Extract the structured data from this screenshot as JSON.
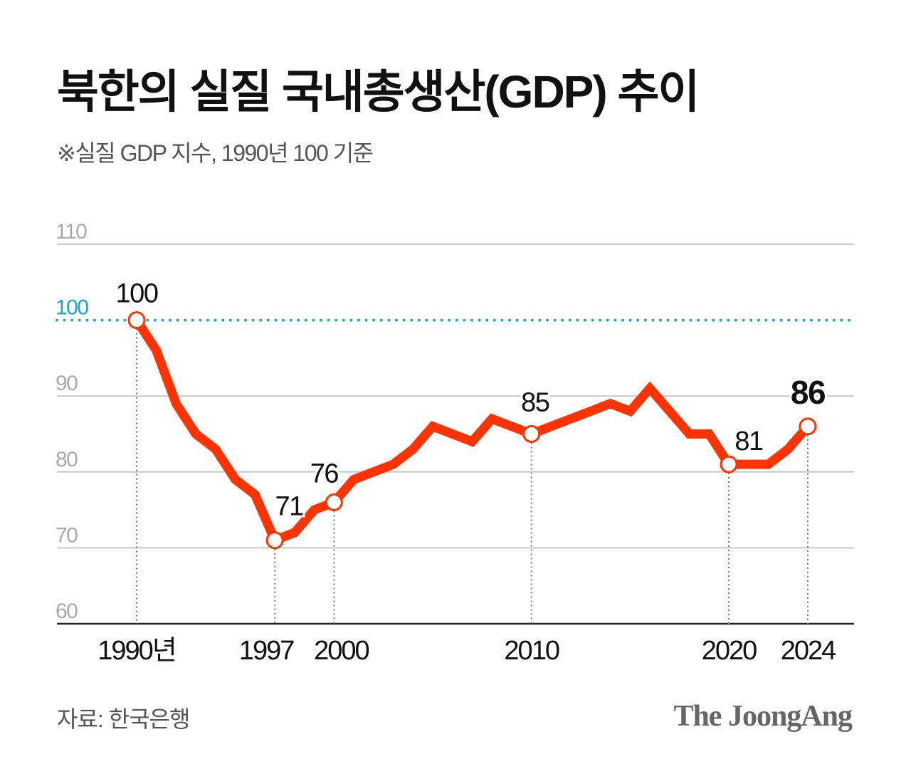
{
  "chart_data": {
    "type": "line",
    "title": "북한의 실질 국내총생산(GDP) 추이",
    "subtitle": "※실질 GDP 지수, 1990년 100 기준",
    "x": [
      1990,
      1991,
      1992,
      1993,
      1994,
      1995,
      1996,
      1997,
      1998,
      1999,
      2000,
      2001,
      2002,
      2003,
      2004,
      2005,
      2006,
      2007,
      2008,
      2009,
      2010,
      2011,
      2012,
      2013,
      2014,
      2015,
      2016,
      2017,
      2018,
      2019,
      2020,
      2021,
      2022,
      2023,
      2024
    ],
    "values": [
      100,
      96,
      89,
      85,
      83,
      79,
      77,
      71,
      72,
      75,
      76,
      79,
      80,
      81,
      83,
      86,
      85,
      84,
      87,
      86,
      85,
      86,
      87,
      88,
      89,
      88,
      91,
      88,
      85,
      85,
      81,
      81,
      81,
      83,
      86
    ],
    "xlim": [
      1985.8,
      1992
    ],
    "ylim": [
      60,
      110
    ],
    "y_ticks": [
      "60",
      "70",
      "80",
      "90",
      "100",
      "110"
    ],
    "x_tick_labels": [
      {
        "year": 1990,
        "label": "1990년"
      },
      {
        "year": 1997,
        "label": "1997"
      },
      {
        "year": 2000,
        "label": "2000"
      },
      {
        "year": 2010,
        "label": "2010"
      },
      {
        "year": 2020,
        "label": "2020"
      },
      {
        "year": 2024,
        "label": "2024"
      }
    ],
    "data_labels": [
      {
        "year": 1990,
        "label": "100"
      },
      {
        "year": 1997,
        "label": "71"
      },
      {
        "year": 2000,
        "label": "76"
      },
      {
        "year": 2010,
        "label": "85"
      },
      {
        "year": 2020,
        "label": "81"
      },
      {
        "year": 2024,
        "label": "86"
      }
    ],
    "reference_line": {
      "value": 100,
      "color": "#1aa5d1"
    },
    "line_color": "#ff3300",
    "grid": true
  },
  "source": "자료: 한국은행",
  "logo": "The JoongAng"
}
